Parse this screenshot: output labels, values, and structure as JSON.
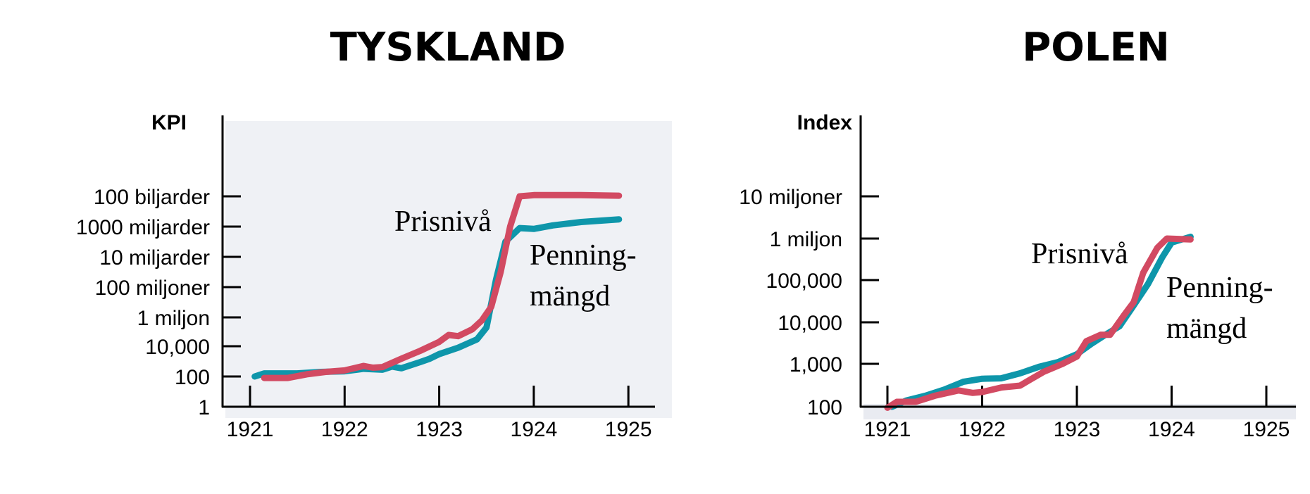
{
  "chart_data": [
    {
      "type": "line",
      "title": "TYSKLAND",
      "ylabel": "KPI",
      "xlabel": "",
      "yscale": "log",
      "x_ticks": [
        "1921",
        "1922",
        "1923",
        "1924",
        "1925"
      ],
      "x_range": [
        1921,
        1925
      ],
      "y_ticks": [
        {
          "value": 1,
          "label": "1"
        },
        {
          "value": 100,
          "label": "100"
        },
        {
          "value": 10000,
          "label": "10,000"
        },
        {
          "value": 1000000,
          "label": "1 miljon"
        },
        {
          "value": 100000000,
          "label": "100 miljoner"
        },
        {
          "value": 10000000000,
          "label": "10 miljarder"
        },
        {
          "value": 1000000000000,
          "label": "1000 miljarder"
        },
        {
          "value": 100000000000000,
          "label": "100 biljarder"
        }
      ],
      "background": "#eff1f5",
      "series": [
        {
          "name": "Prisnivå",
          "color": "#d24a62",
          "x": [
            1921.15,
            1921.4,
            1921.6,
            1921.8,
            1922.0,
            1922.2,
            1922.3,
            1922.4,
            1922.6,
            1922.8,
            1923.0,
            1923.1,
            1923.2,
            1923.35,
            1923.45,
            1923.55,
            1923.65,
            1923.75,
            1923.85,
            1924.0,
            1924.5,
            1924.9
          ],
          "y": [
            80,
            80,
            140,
            200,
            250,
            500,
            380,
            420,
            1500,
            5000,
            20000,
            60000,
            50000,
            150000,
            600000,
            5000000,
            1000000000.0,
            1000000000000.0,
            100000000000000.0,
            120000000000000.0,
            120000000000000.0,
            110000000000000.0
          ]
        },
        {
          "name": "Penningmängd",
          "color": "#0e96aa",
          "x": [
            1921.05,
            1921.15,
            1921.5,
            1921.75,
            1922.0,
            1922.2,
            1922.4,
            1922.5,
            1922.6,
            1922.8,
            1922.9,
            1923.0,
            1923.2,
            1923.4,
            1923.5,
            1923.6,
            1923.7,
            1923.85,
            1924.0,
            1924.2,
            1924.5,
            1924.9
          ],
          "y": [
            100,
            160,
            160,
            200,
            220,
            320,
            280,
            450,
            350,
            900,
            1500,
            3000,
            8000,
            30000,
            200000,
            300000000.0,
            100000000000.0,
            800000000000.0,
            700000000000.0,
            1200000000000.0,
            2000000000000.0,
            3000000000000.0
          ]
        }
      ],
      "annotations": [
        {
          "text": "Prisnivå",
          "series": "Prisnivå"
        },
        {
          "text": "Penning-",
          "series": "Penningmängd"
        },
        {
          "text": "mängd",
          "series": "Penningmängd"
        }
      ]
    },
    {
      "type": "line",
      "title": "POLEN",
      "ylabel": "Index",
      "xlabel": "",
      "yscale": "log",
      "x_ticks": [
        "1921",
        "1922",
        "1923",
        "1924",
        "1925"
      ],
      "x_range": [
        1921,
        1925
      ],
      "y_ticks": [
        {
          "value": 100,
          "label": "100"
        },
        {
          "value": 1000,
          "label": "1,000"
        },
        {
          "value": 10000,
          "label": "10,000"
        },
        {
          "value": 100000,
          "label": "100,000"
        },
        {
          "value": 1000000,
          "label": "1 miljon"
        },
        {
          "value": 10000000,
          "label": "10 miljoner"
        }
      ],
      "background": "#ffffff",
      "series": [
        {
          "name": "Prisnivå",
          "color": "#d24a62",
          "x": [
            1921.0,
            1921.1,
            1921.3,
            1921.5,
            1921.75,
            1921.9,
            1922.0,
            1922.2,
            1922.4,
            1922.5,
            1922.65,
            1922.85,
            1923.0,
            1923.1,
            1923.25,
            1923.35,
            1923.5,
            1923.6,
            1923.7,
            1923.85,
            1923.95,
            1924.2
          ],
          "y": [
            95,
            130,
            130,
            180,
            240,
            210,
            220,
            280,
            310,
            420,
            650,
            1000,
            1500,
            3500,
            5000,
            5000,
            15000,
            30000,
            150000,
            600000,
            1000000,
            950000
          ]
        },
        {
          "name": "Penningmängd",
          "color": "#0e96aa",
          "x": [
            1921.05,
            1921.2,
            1921.4,
            1921.6,
            1921.8,
            1922.0,
            1922.2,
            1922.4,
            1922.6,
            1922.8,
            1923.0,
            1923.15,
            1923.3,
            1923.45,
            1923.6,
            1923.75,
            1923.9,
            1924.0,
            1924.2
          ],
          "y": [
            100,
            140,
            180,
            250,
            380,
            450,
            460,
            600,
            850,
            1100,
            1700,
            3000,
            5000,
            8000,
            25000,
            80000,
            350000,
            800000,
            1100000
          ]
        }
      ],
      "annotations": [
        {
          "text": "Prisnivå",
          "series": "Prisnivå"
        },
        {
          "text": "Penning-",
          "series": "Penningmängd"
        },
        {
          "text": "mängd",
          "series": "Penningmängd"
        }
      ]
    }
  ]
}
